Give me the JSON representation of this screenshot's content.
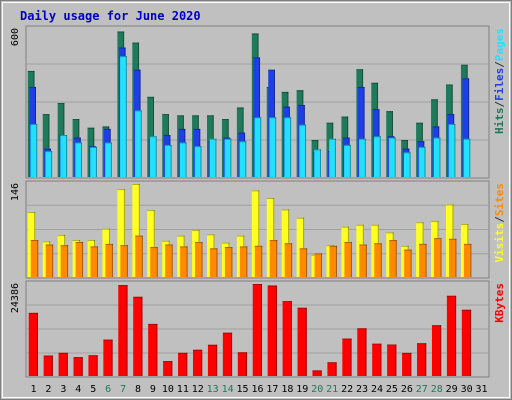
{
  "chart_data": {
    "type": "bar",
    "title": "Daily usage for June 2020",
    "colors": {
      "background": "#C0C0C0",
      "title": "#0000CC",
      "hits": "#1E7A5A",
      "files": "#1E3FE6",
      "pages": "#22E0FF",
      "visits": "#FFFF22",
      "sites": "#FF8A00",
      "kbytes": "#FF0000",
      "weekend_day": "#1E7A5A",
      "weekday": "#000000"
    },
    "days": [
      "1",
      "2",
      "3",
      "4",
      "5",
      "6",
      "7",
      "8",
      "9",
      "10",
      "11",
      "12",
      "13",
      "14",
      "15",
      "16",
      "17",
      "18",
      "19",
      "20",
      "21",
      "22",
      "23",
      "24",
      "25",
      "26",
      "27",
      "28",
      "29",
      "30",
      "31"
    ],
    "weekend_days": [
      "6",
      "7",
      "13",
      "14",
      "20",
      "21",
      "27",
      "28"
    ],
    "panels": [
      {
        "id": "hits",
        "ymax_label": "600",
        "ymax": 600,
        "side_labels": [
          {
            "text": "Hits",
            "color": "#1E7A5A"
          },
          {
            "text": "/",
            "color": "#333333"
          },
          {
            "text": "Files",
            "color": "#1E3FE6"
          },
          {
            "text": "/",
            "color": "#333333"
          },
          {
            "text": "Pages",
            "color": "#22E0FF"
          }
        ],
        "series": [
          {
            "name": "Hits",
            "values": [
              430,
              255,
              300,
              235,
              200,
              205,
              590,
              545,
              325,
              255,
              250,
              250,
              250,
              235,
              282,
              582,
              365,
              345,
              352,
              150,
              220,
              245,
              437,
              382,
              267,
              150,
              220,
              315,
              375,
              455,
              0
            ]
          },
          {
            "name": "Files",
            "values": [
              365,
              115,
              170,
              160,
              125,
              195,
              525,
              435,
              155,
              170,
              195,
              195,
              145,
              160,
              180,
              485,
              435,
              285,
              292,
              100,
              105,
              160,
              365,
              275,
              165,
              115,
              145,
              205,
              255,
              400,
              0
            ]
          },
          {
            "name": "Pages",
            "values": [
              215,
              105,
              170,
              140,
              122,
              140,
              490,
              270,
              165,
              130,
              140,
              125,
              155,
              155,
              145,
              242,
              242,
              242,
              212,
              112,
              155,
              130,
              155,
              165,
              160,
              100,
              122,
              160,
              215,
              155,
              0
            ]
          }
        ]
      },
      {
        "id": "visits",
        "ymax_label": "146",
        "ymax": 146,
        "side_labels": [
          {
            "text": "Visits",
            "color": "#FFFF22"
          },
          {
            "text": "/",
            "color": "#333333"
          },
          {
            "text": "Sites",
            "color": "#FF8A00"
          }
        ],
        "series": [
          {
            "name": "Visits",
            "values": [
              102,
              56,
              66,
              58,
              58,
              76,
              138,
              146,
              105,
              57,
              65,
              74,
              67,
              54,
              65,
              136,
              124,
              106,
              93,
              35,
              50,
              79,
              82,
              82,
              70,
              49,
              86,
              88,
              114,
              83,
              0
            ]
          },
          {
            "name": "Sites",
            "values": [
              58,
              51,
              50,
              55,
              48,
              52,
              50,
              65,
              47,
              51,
              48,
              55,
              45,
              47,
              48,
              49,
              58,
              53,
              45,
              37,
              49,
              55,
              51,
              53,
              58,
              43,
              52,
              61,
              60,
              52,
              0
            ]
          }
        ]
      },
      {
        "id": "kbytes",
        "ymax_label": "24386",
        "ymax": 24386,
        "side_labels": [
          {
            "text": "KBytes",
            "color": "#FF0000"
          }
        ],
        "series": [
          {
            "name": "KBytes",
            "values": [
              16740,
              5430,
              6150,
              5000,
              5500,
              9650,
              24100,
              21000,
              13810,
              3950,
              6150,
              6970,
              8280,
              11480,
              6290,
              24380,
              24000,
              19850,
              18090,
              1480,
              3640,
              9920,
              12650,
              8570,
              8350,
              6130,
              8690,
              13460,
              21270,
              17560,
              0
            ]
          }
        ]
      }
    ]
  }
}
